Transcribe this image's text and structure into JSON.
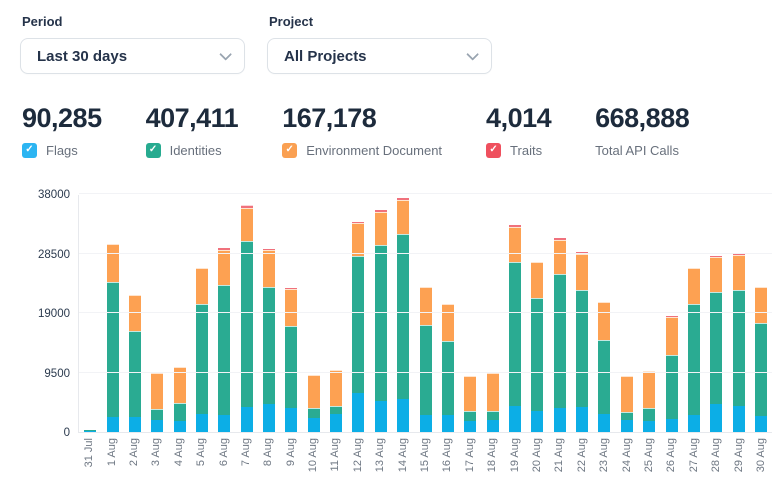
{
  "filters": {
    "period": {
      "label": "Period",
      "value": "Last 30 days"
    },
    "project": {
      "label": "Project",
      "value": "All Projects"
    }
  },
  "icons": {
    "checkmark": "✓",
    "select_chevron": "chevron-down"
  },
  "stats": [
    {
      "value": "90,285",
      "label": "Flags",
      "checkbox_color": "#2cb5f2",
      "checked": true
    },
    {
      "value": "407,411",
      "label": "Identities",
      "checkbox_color": "#27ab90",
      "checked": true
    },
    {
      "value": "167,178",
      "label": "Environment Document",
      "checkbox_color": "#faa052",
      "checked": true
    },
    {
      "value": "4,014",
      "label": "Traits",
      "checkbox_color": "#ef505e",
      "checked": true
    },
    {
      "value": "668,888",
      "label": "Total API Calls",
      "checkbox_color": "",
      "checked": false
    }
  ],
  "chart_data": {
    "type": "bar",
    "stacked": true,
    "title": "",
    "xlabel": "",
    "ylabel": "",
    "ylim": [
      0,
      38000
    ],
    "yticks": [
      0,
      9500,
      19000,
      28500,
      38000
    ],
    "grid": true,
    "legend_position": "checkbox row above chart",
    "x": [
      "31 Jul",
      "1 Aug",
      "2 Aug",
      "3 Aug",
      "4 Aug",
      "5 Aug",
      "6 Aug",
      "7 Aug",
      "8 Aug",
      "9 Aug",
      "10 Aug",
      "11 Aug",
      "12 Aug",
      "13 Aug",
      "14 Aug",
      "15 Aug",
      "16 Aug",
      "17 Aug",
      "18 Aug",
      "19 Aug",
      "20 Aug",
      "21 Aug",
      "22 Aug",
      "23 Aug",
      "24 Aug",
      "25 Aug",
      "26 Aug",
      "27 Aug",
      "28 Aug",
      "29 Aug",
      "30 Aug"
    ],
    "series": [
      {
        "name": "Flags",
        "color": "#0caee6",
        "values": [
          100,
          2400,
          2400,
          1900,
          1800,
          2900,
          2700,
          4000,
          4400,
          3900,
          2300,
          2900,
          6300,
          5000,
          5200,
          2700,
          2700,
          1800,
          1900,
          4200,
          3400,
          3900,
          4000,
          2900,
          1900,
          1800,
          2100,
          2700,
          4400,
          4200,
          2600
        ]
      },
      {
        "name": "Identities",
        "color": "#2aab92",
        "values": [
          200,
          21600,
          13700,
          1700,
          2900,
          17500,
          20700,
          26500,
          18800,
          13100,
          1500,
          1300,
          21800,
          24900,
          26400,
          14400,
          11800,
          1500,
          1500,
          23000,
          18000,
          21300,
          18600,
          11800,
          1300,
          2100,
          10200,
          17800,
          18000,
          18400,
          14800
        ]
      },
      {
        "name": "Environment Document",
        "color": "#fda152",
        "values": [
          0,
          6000,
          5800,
          5800,
          5700,
          5800,
          5700,
          5300,
          5800,
          5800,
          5300,
          5700,
          5300,
          5300,
          5500,
          6100,
          6000,
          5700,
          6000,
          5500,
          5800,
          5500,
          5800,
          6000,
          5700,
          5800,
          6000,
          5700,
          5500,
          5700,
          5700
        ]
      },
      {
        "name": "Traits",
        "color": "#f0717c",
        "values": [
          0,
          0,
          0,
          0,
          0,
          0,
          300,
          400,
          300,
          200,
          0,
          0,
          200,
          300,
          300,
          0,
          0,
          0,
          0,
          300,
          0,
          200,
          300,
          0,
          0,
          0,
          150,
          0,
          250,
          250,
          100
        ]
      }
    ]
  }
}
